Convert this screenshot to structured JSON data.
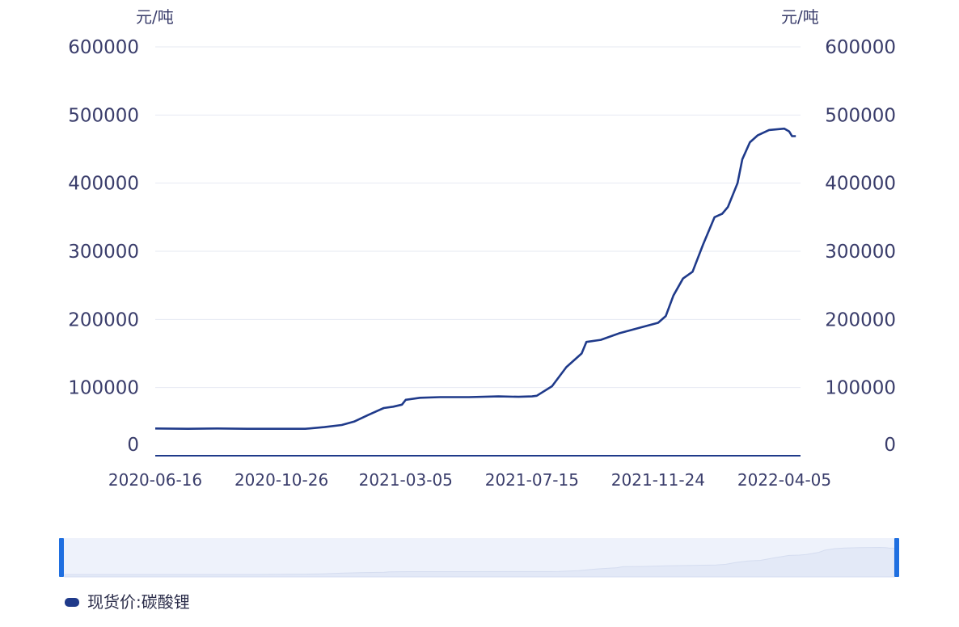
{
  "chart_data": {
    "type": "line",
    "title": "",
    "y_unit_left": "元/吨",
    "y_unit_right": "元/吨",
    "ylim": [
      0,
      600000
    ],
    "y_ticks": [
      0,
      100000,
      200000,
      300000,
      400000,
      500000,
      600000
    ],
    "y_tick_labels": [
      "0",
      "100000",
      "200000",
      "300000",
      "400000",
      "500000",
      "600000"
    ],
    "x_tick_labels": [
      "2020-06-16",
      "2020-10-26",
      "2021-03-05",
      "2021-07-15",
      "2021-11-24",
      "2022-04-05"
    ],
    "grid": true,
    "legend_position": "bottom-left",
    "colors": {
      "line": "#1f3a8a",
      "grid": "#e6e9f2",
      "axis": "#1f3a8a",
      "slider_fill": "#eef2fb",
      "slider_handle": "#1f6fe0"
    },
    "series": [
      {
        "name": "现货价:碳酸锂",
        "points": [
          [
            "2020-06-16",
            40000
          ],
          [
            "2020-07-20",
            39500
          ],
          [
            "2020-08-20",
            40000
          ],
          [
            "2020-09-20",
            39500
          ],
          [
            "2020-10-26",
            39500
          ],
          [
            "2020-11-20",
            39500
          ],
          [
            "2020-12-10",
            42000
          ],
          [
            "2020-12-28",
            45000
          ],
          [
            "2021-01-10",
            50000
          ],
          [
            "2021-01-25",
            60000
          ],
          [
            "2021-02-10",
            70000
          ],
          [
            "2021-02-20",
            72000
          ],
          [
            "2021-03-01",
            75000
          ],
          [
            "2021-03-05",
            82000
          ],
          [
            "2021-03-20",
            85000
          ],
          [
            "2021-04-10",
            86000
          ],
          [
            "2021-05-10",
            86000
          ],
          [
            "2021-06-10",
            87000
          ],
          [
            "2021-07-01",
            86500
          ],
          [
            "2021-07-15",
            87000
          ],
          [
            "2021-07-20",
            88000
          ],
          [
            "2021-08-05",
            102000
          ],
          [
            "2021-08-20",
            130000
          ],
          [
            "2021-09-05",
            150000
          ],
          [
            "2021-09-10",
            167000
          ],
          [
            "2021-09-25",
            170000
          ],
          [
            "2021-10-15",
            180000
          ],
          [
            "2021-11-05",
            188000
          ],
          [
            "2021-11-24",
            195000
          ],
          [
            "2021-12-02",
            205000
          ],
          [
            "2021-12-10",
            235000
          ],
          [
            "2021-12-20",
            260000
          ],
          [
            "2021-12-30",
            270000
          ],
          [
            "2022-01-10",
            310000
          ],
          [
            "2022-01-22",
            350000
          ],
          [
            "2022-01-30",
            355000
          ],
          [
            "2022-02-05",
            365000
          ],
          [
            "2022-02-15",
            400000
          ],
          [
            "2022-02-20",
            435000
          ],
          [
            "2022-02-28",
            460000
          ],
          [
            "2022-03-08",
            470000
          ],
          [
            "2022-03-20",
            478000
          ],
          [
            "2022-04-05",
            480000
          ],
          [
            "2022-04-10",
            476000
          ],
          [
            "2022-04-13",
            469000
          ],
          [
            "2022-04-17",
            469000
          ]
        ]
      }
    ]
  },
  "legend": {
    "label": "现货价:碳酸锂"
  }
}
